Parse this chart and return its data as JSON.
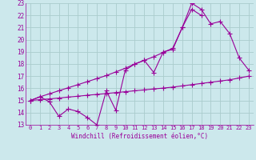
{
  "line1_x": [
    0,
    1,
    2,
    3,
    4,
    5,
    6,
    7,
    8,
    9,
    10,
    11,
    12,
    13,
    14,
    15,
    16,
    17,
    18,
    19,
    20,
    21,
    22,
    23
  ],
  "line1_y": [
    15.0,
    15.07,
    15.13,
    15.2,
    15.28,
    15.35,
    15.43,
    15.5,
    15.57,
    15.65,
    15.72,
    15.8,
    15.87,
    15.95,
    16.02,
    16.1,
    16.2,
    16.3,
    16.4,
    16.5,
    16.6,
    16.7,
    16.85,
    17.0
  ],
  "line2_x": [
    0,
    1,
    2,
    3,
    4,
    5,
    6,
    7,
    8,
    9,
    10,
    11,
    12,
    13,
    14,
    15,
    16,
    17,
    18,
    19,
    20,
    21,
    22,
    23
  ],
  "line2_y": [
    15.0,
    15.3,
    14.9,
    13.7,
    14.3,
    14.1,
    13.6,
    13.0,
    15.8,
    14.2,
    17.5,
    18.0,
    18.3,
    17.3,
    19.0,
    19.2,
    21.0,
    22.5,
    22.0,
    null,
    null,
    null,
    null,
    null
  ],
  "line3_x": [
    0,
    1,
    2,
    3,
    4,
    5,
    6,
    7,
    8,
    9,
    10,
    11,
    12,
    13,
    14,
    15,
    16,
    17,
    18,
    19,
    20,
    21,
    22,
    23
  ],
  "line3_y": [
    15.0,
    15.3,
    15.55,
    15.8,
    16.05,
    16.3,
    16.55,
    16.8,
    17.05,
    17.35,
    17.65,
    18.0,
    18.3,
    18.6,
    18.95,
    19.3,
    21.0,
    23.0,
    22.5,
    21.3,
    21.5,
    20.5,
    18.5,
    17.5
  ],
  "color": "#990099",
  "bgcolor": "#cce8ec",
  "gridcolor": "#aacccc",
  "xlim": [
    -0.5,
    23.5
  ],
  "ylim": [
    13,
    23
  ],
  "xlabel": "Windchill (Refroidissement éolien,°C)",
  "xticks": [
    0,
    1,
    2,
    3,
    4,
    5,
    6,
    7,
    8,
    9,
    10,
    11,
    12,
    13,
    14,
    15,
    16,
    17,
    18,
    19,
    20,
    21,
    22,
    23
  ],
  "yticks": [
    13,
    14,
    15,
    16,
    17,
    18,
    19,
    20,
    21,
    22,
    23
  ],
  "marker": "+",
  "markersize": 4,
  "linewidth": 0.8
}
